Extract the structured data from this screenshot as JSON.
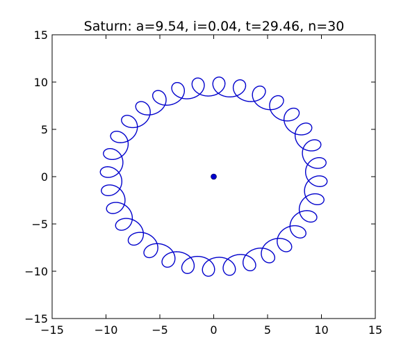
{
  "chart_data": {
    "type": "line",
    "title": "Saturn: a=9.54, i=0.04, t=29.46, n=30",
    "xlabel": "",
    "ylabel": "",
    "xlim": [
      -15,
      15
    ],
    "ylim": [
      -15,
      15
    ],
    "x_ticks": [
      -15,
      -10,
      -5,
      0,
      5,
      10,
      15
    ],
    "y_ticks": [
      -15,
      -10,
      -5,
      0,
      5,
      10,
      15
    ],
    "x_tick_labels": [
      "−15",
      "−10",
      "−5",
      "0",
      "5",
      "10",
      "15"
    ],
    "y_tick_labels": [
      "−15",
      "−10",
      "−5",
      "0",
      "5",
      "10",
      "15"
    ],
    "grid": false,
    "series": [
      {
        "kind": "curve",
        "color": "#0000cc",
        "planet_orbit_radius": 9.54,
        "secondary_radius": 1.0,
        "loops": 30,
        "start_point": [
          8.54,
          1.2
        ]
      },
      {
        "kind": "point",
        "color": "#0000cc",
        "x": 0,
        "y": 0
      }
    ]
  }
}
